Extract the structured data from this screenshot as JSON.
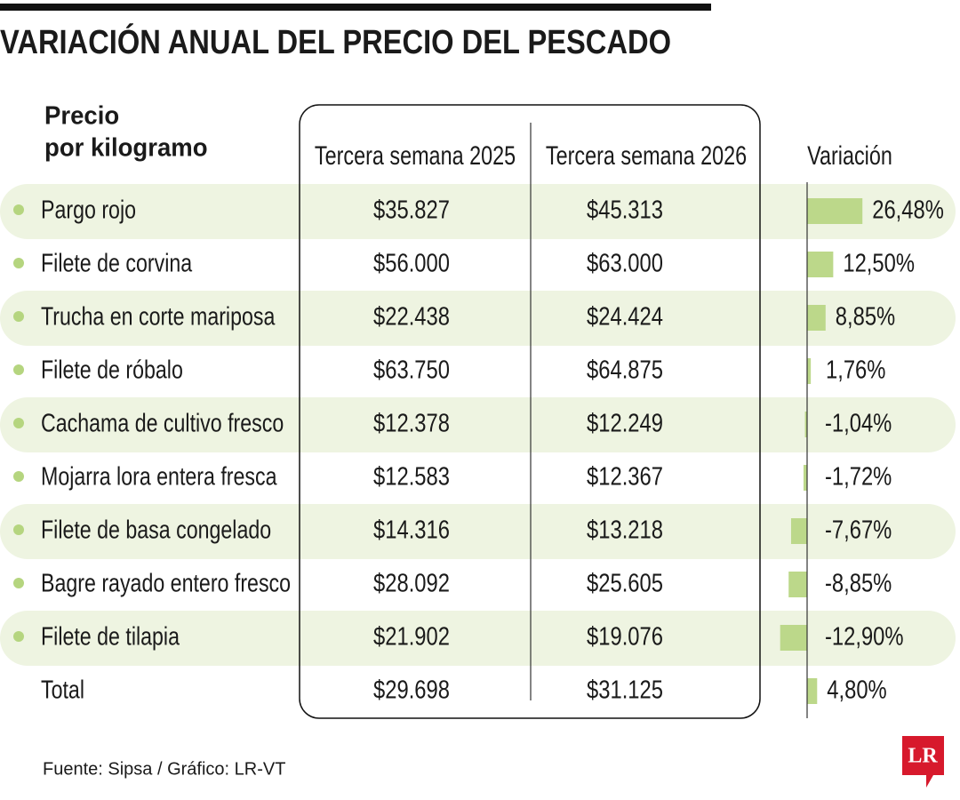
{
  "title": "VARIACIÓN ANUAL DEL PRECIO DEL PESCADO",
  "header": {
    "label": [
      "Precio",
      "por kilogramo"
    ],
    "columns": [
      "Tercera semana 2025",
      "Tercera semana 2026",
      "Variación"
    ]
  },
  "rows": [
    {
      "name": "Pargo rojo",
      "price_2025": "$35.827",
      "price_2026": "$45.313",
      "variation": {
        "value": 26.48,
        "label": "26,48%"
      }
    },
    {
      "name": "Filete de corvina",
      "price_2025": "$56.000",
      "price_2026": "$63.000",
      "variation": {
        "value": 12.5,
        "label": "12,50%"
      }
    },
    {
      "name": "Trucha en corte mariposa",
      "price_2025": "$22.438",
      "price_2026": "$24.424",
      "variation": {
        "value": 8.85,
        "label": "8,85%"
      }
    },
    {
      "name": "Filete de róbalo",
      "price_2025": "$63.750",
      "price_2026": "$64.875",
      "variation": {
        "value": 1.76,
        "label": "1,76%"
      }
    },
    {
      "name": "Cachama de cultivo fresco",
      "price_2025": "$12.378",
      "price_2026": "$12.249",
      "variation": {
        "value": -1.04,
        "label": "-1,04%"
      }
    },
    {
      "name": "Mojarra lora entera fresca",
      "price_2025": "$12.583",
      "price_2026": "$12.367",
      "variation": {
        "value": -1.72,
        "label": "-1,72%"
      }
    },
    {
      "name": "Filete de basa congelado",
      "price_2025": "$14.316",
      "price_2026": "$13.218",
      "variation": {
        "value": -7.67,
        "label": "-7,67%"
      }
    },
    {
      "name": "Bagre rayado entero fresco",
      "price_2025": "$28.092",
      "price_2026": "$25.605",
      "variation": {
        "value": -8.85,
        "label": "-8,85%"
      }
    },
    {
      "name": "Filete de tilapia",
      "price_2025": "$21.902",
      "price_2026": "$19.076",
      "variation": {
        "value": -12.9,
        "label": "-12,90%"
      }
    }
  ],
  "total": {
    "name": "Total",
    "price_2025": "$29.698",
    "price_2026": "$31.125",
    "variation": {
      "value": 4.8,
      "label": "4,80%"
    }
  },
  "source": "Fuente: Sipsa / Gráfico: LR-VT",
  "logo": "LR"
}
